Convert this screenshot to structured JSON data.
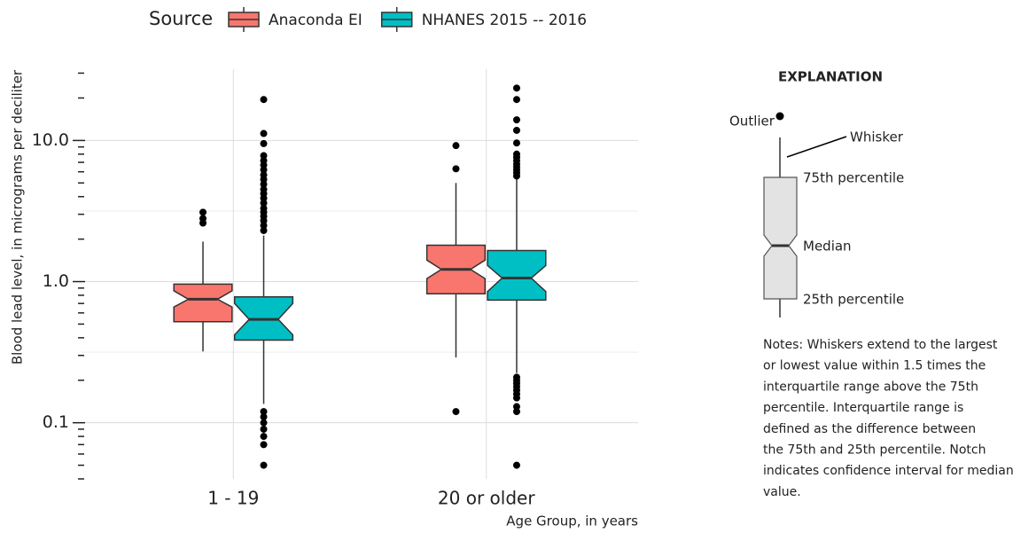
{
  "chart_data": {
    "type": "boxplot",
    "legend_title": "Source",
    "y_label": "Blood lead level, in micrograms per deciliter",
    "x_label": "Age Group, in years",
    "categories": [
      "1 - 19",
      "20 or older"
    ],
    "log_y": true,
    "ylim": [
      0.04,
      32
    ],
    "yticks": [
      0.1,
      {
        "value": 1,
        "label": "1.0"
      },
      {
        "value": 10,
        "label": "10.0"
      }
    ],
    "minor_yticks": [
      0.04,
      0.05,
      0.06,
      0.07,
      0.08,
      0.09,
      0.2,
      0.3,
      0.4,
      0.5,
      0.6,
      0.7,
      0.8,
      0.9,
      2,
      3,
      4,
      5,
      6,
      7,
      8,
      9,
      20,
      30
    ],
    "minor_grid": [
      0.3162,
      3.162
    ],
    "grid": true,
    "series": [
      {
        "name": "Anaconda EI",
        "color": "#F8766D",
        "boxes": [
          {
            "q1": 0.52,
            "median": 0.75,
            "q3": 0.96,
            "whisker_low": 0.32,
            "whisker_high": 1.92,
            "notch_low": 0.66,
            "notch_high": 0.86,
            "outliers": [
              3.1,
              2.8,
              2.6
            ]
          },
          {
            "q1": 0.82,
            "median": 1.22,
            "q3": 1.81,
            "whisker_low": 0.29,
            "whisker_high": 5.0,
            "notch_low": 1.05,
            "notch_high": 1.42,
            "outliers": [
              9.2,
              6.3,
              0.12
            ]
          }
        ]
      },
      {
        "name": "NHANES 2015 -- 2016",
        "color": "#00BFC4",
        "boxes": [
          {
            "q1": 0.385,
            "median": 0.54,
            "q3": 0.78,
            "whisker_low": 0.136,
            "whisker_high": 2.12,
            "notch_low": 0.42,
            "notch_high": 0.7,
            "outliers": [
              2.3,
              2.5,
              2.7,
              2.9,
              3.1,
              3.3,
              3.6,
              3.9,
              4.2,
              4.5,
              4.9,
              5.3,
              5.7,
              6.2,
              6.7,
              7.2,
              7.8,
              9.5,
              11.2,
              19.5,
              0.12,
              0.11,
              0.1,
              0.09,
              0.08,
              0.07,
              0.05
            ]
          },
          {
            "q1": 0.74,
            "median": 1.06,
            "q3": 1.66,
            "whisker_low": 0.225,
            "whisker_high": 5.4,
            "notch_low": 0.85,
            "notch_high": 1.3,
            "outliers": [
              5.6,
              5.9,
              6.2,
              6.5,
              6.8,
              7.2,
              7.6,
              8.0,
              9.6,
              11.8,
              14,
              19.5,
              23.5,
              0.21,
              0.2,
              0.19,
              0.18,
              0.17,
              0.16,
              0.15,
              0.13,
              0.12,
              0.05
            ]
          }
        ]
      }
    ]
  },
  "explanation": {
    "title": "EXPLANATION",
    "outlier": "Outlier",
    "whisker": "Whisker",
    "p75": "75th percentile",
    "median": "Median",
    "p25": "25th percentile",
    "notes": [
      "Notes: Whiskers extend to the largest",
      "or lowest value within 1.5 times the",
      "interquartile range above the 75th",
      "percentile. Interquartile range is",
      "defined as the difference between",
      "the 75th and 25th percentile. Notch",
      "indicates confidence interval for median",
      "value."
    ]
  }
}
